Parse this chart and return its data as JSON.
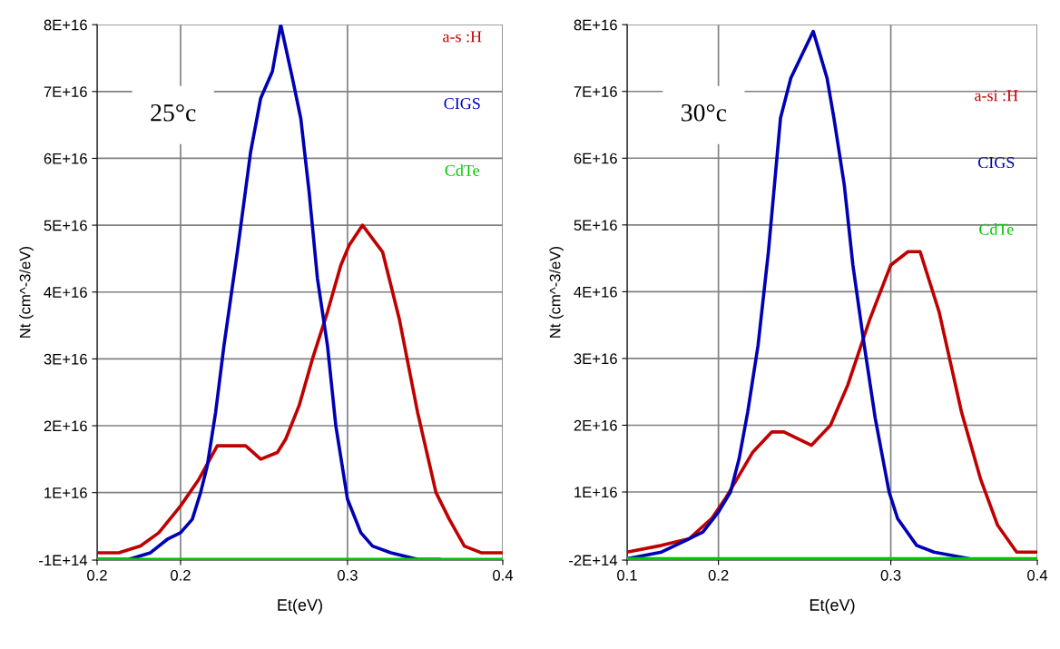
{
  "chart_data": [
    {
      "type": "line",
      "xlabel": "Et(eV)",
      "ylabel": "Nt (cm^-3/eV)",
      "annotations": [
        "25°c"
      ],
      "xlim": [
        0.15,
        0.393
      ],
      "xticks": [
        {
          "value": 0.15,
          "label": "0.2"
        },
        {
          "value": 0.2,
          "label": "0.2"
        },
        {
          "value": 0.3,
          "label": "0.3"
        },
        {
          "value": 0.393,
          "label": "0.4"
        }
      ],
      "ylim": [
        -100000000000000.0,
        8e+16
      ],
      "yticks": [
        {
          "value": -100000000000000.0,
          "label": "-1E+14"
        },
        {
          "value": 1e+16,
          "label": "1E+16"
        },
        {
          "value": 2e+16,
          "label": "2E+16"
        },
        {
          "value": 3e+16,
          "label": "3E+16"
        },
        {
          "value": 4e+16,
          "label": "4E+16"
        },
        {
          "value": 5e+16,
          "label": "5E+16"
        },
        {
          "value": 6e+16,
          "label": "6E+16"
        },
        {
          "value": 7e+16,
          "label": "7E+16"
        },
        {
          "value": 8e+16,
          "label": "8E+16"
        }
      ],
      "grid": true,
      "legend": "top right",
      "marker": "none",
      "line_style": "solid",
      "series": [
        {
          "name": "a-s :H",
          "color": "#c00000",
          "x": [
            0.15,
            0.163,
            0.176,
            0.187,
            0.2,
            0.211,
            0.222,
            0.232,
            0.239,
            0.248,
            0.258,
            0.263,
            0.271,
            0.279,
            0.288,
            0.296,
            0.301,
            0.309,
            0.315,
            0.321,
            0.331,
            0.342,
            0.353,
            0.361,
            0.37,
            0.38,
            0.393
          ],
          "values": [
            1000000000000000.0,
            1000000000000000.0,
            2000000000000000.0,
            4000000000000000.0,
            8000000000000000.0,
            1.2e+16,
            1.7e+16,
            1.7e+16,
            1.7e+16,
            1.5e+16,
            1.6e+16,
            1.8e+16,
            2.3e+16,
            3e+16,
            3.7e+16,
            4.4e+16,
            4.7e+16,
            5e+16,
            4.8e+16,
            4.6e+16,
            3.6e+16,
            2.2e+16,
            1e+16,
            6000000000000000.0,
            2000000000000000.0,
            1000000000000000.0,
            1000000000000000.0
          ]
        },
        {
          "name": "CIGS",
          "color": "#0000b4",
          "x": [
            0.15,
            0.169,
            0.182,
            0.192,
            0.2,
            0.207,
            0.212,
            0.216,
            0.221,
            0.226,
            0.234,
            0.242,
            0.248,
            0.255,
            0.26,
            0.267,
            0.272,
            0.277,
            0.282,
            0.288,
            0.293,
            0.3,
            0.308,
            0.315,
            0.326,
            0.342,
            0.355
          ],
          "values": [
            0.0,
            0.0,
            1000000000000000.0,
            3000000000000000.0,
            4000000000000000.0,
            6000000000000000.0,
            1e+16,
            1.4e+16,
            2.2e+16,
            3.2e+16,
            4.6e+16,
            6.1e+16,
            6.9e+16,
            7.3e+16,
            8e+16,
            7.2e+16,
            6.6e+16,
            5.5e+16,
            4.2e+16,
            3.2e+16,
            2e+16,
            9000000000000000.0,
            4000000000000000.0,
            2000000000000000.0,
            1000000000000000.0,
            0.0,
            0.0
          ]
        },
        {
          "name": "CdTe",
          "color": "#00c800",
          "x": [
            0.15,
            0.393
          ],
          "values": [
            0,
            0
          ]
        }
      ]
    },
    {
      "type": "line",
      "xlabel": "Et(eV)",
      "ylabel": "Nt (cm^-3/eV)",
      "annotations": [
        "30°c"
      ],
      "xlim": [
        0.147,
        0.385
      ],
      "xticks": [
        {
          "value": 0.147,
          "label": "0.1"
        },
        {
          "value": 0.2,
          "label": "0.2"
        },
        {
          "value": 0.3,
          "label": "0.3"
        },
        {
          "value": 0.385,
          "label": "0.4"
        }
      ],
      "ylim": [
        -200000000000000.0,
        8e+16
      ],
      "yticks": [
        {
          "value": -200000000000000.0,
          "label": "-2E+14"
        },
        {
          "value": 1e+16,
          "label": "1E+16"
        },
        {
          "value": 2e+16,
          "label": "2E+16"
        },
        {
          "value": 3e+16,
          "label": "3E+16"
        },
        {
          "value": 4e+16,
          "label": "4E+16"
        },
        {
          "value": 5e+16,
          "label": "5E+16"
        },
        {
          "value": 6e+16,
          "label": "6E+16"
        },
        {
          "value": 7e+16,
          "label": "7E+16"
        },
        {
          "value": 8e+16,
          "label": "8E+16"
        }
      ],
      "grid": true,
      "legend": "right",
      "marker": "none",
      "line_style": "solid",
      "series": [
        {
          "name": "a-si :H",
          "color": "#c00000",
          "x": [
            0.147,
            0.167,
            0.183,
            0.196,
            0.204,
            0.22,
            0.231,
            0.238,
            0.254,
            0.265,
            0.275,
            0.288,
            0.3,
            0.31,
            0.317,
            0.328,
            0.341,
            0.352,
            0.362,
            0.373,
            0.385
          ],
          "values": [
            1000000000000000.0,
            2000000000000000.0,
            3000000000000000.0,
            6000000000000000.0,
            9000000000000000.0,
            1.6e+16,
            1.9e+16,
            1.9e+16,
            1.7e+16,
            2e+16,
            2.6e+16,
            3.6e+16,
            4.4e+16,
            4.6e+16,
            4.6e+16,
            3.7e+16,
            2.2e+16,
            1.2e+16,
            5000000000000000.0,
            1000000000000000.0,
            1000000000000000.0
          ]
        },
        {
          "name": "CIGS",
          "color": "#0000b4",
          "x": [
            0.147,
            0.167,
            0.183,
            0.191,
            0.2,
            0.207,
            0.212,
            0.217,
            0.223,
            0.229,
            0.236,
            0.242,
            0.255,
            0.263,
            0.267,
            0.273,
            0.278,
            0.284,
            0.291,
            0.299,
            0.304,
            0.315,
            0.325,
            0.346
          ],
          "values": [
            0.0,
            1000000000000000.0,
            3000000000000000.0,
            4000000000000000.0,
            7000000000000000.0,
            1e+16,
            1.5e+16,
            2.2e+16,
            3.2e+16,
            4.6e+16,
            6.6e+16,
            7.2e+16,
            7.9e+16,
            7.2e+16,
            6.6e+16,
            5.6e+16,
            4.4e+16,
            3.3e+16,
            2.1e+16,
            1e+16,
            6000000000000000.0,
            2000000000000000.0,
            1000000000000000.0,
            0.0
          ]
        },
        {
          "name": "CdTe",
          "color": "#00c800",
          "x": [
            0.147,
            0.385
          ],
          "values": [
            0,
            0
          ]
        }
      ]
    }
  ]
}
